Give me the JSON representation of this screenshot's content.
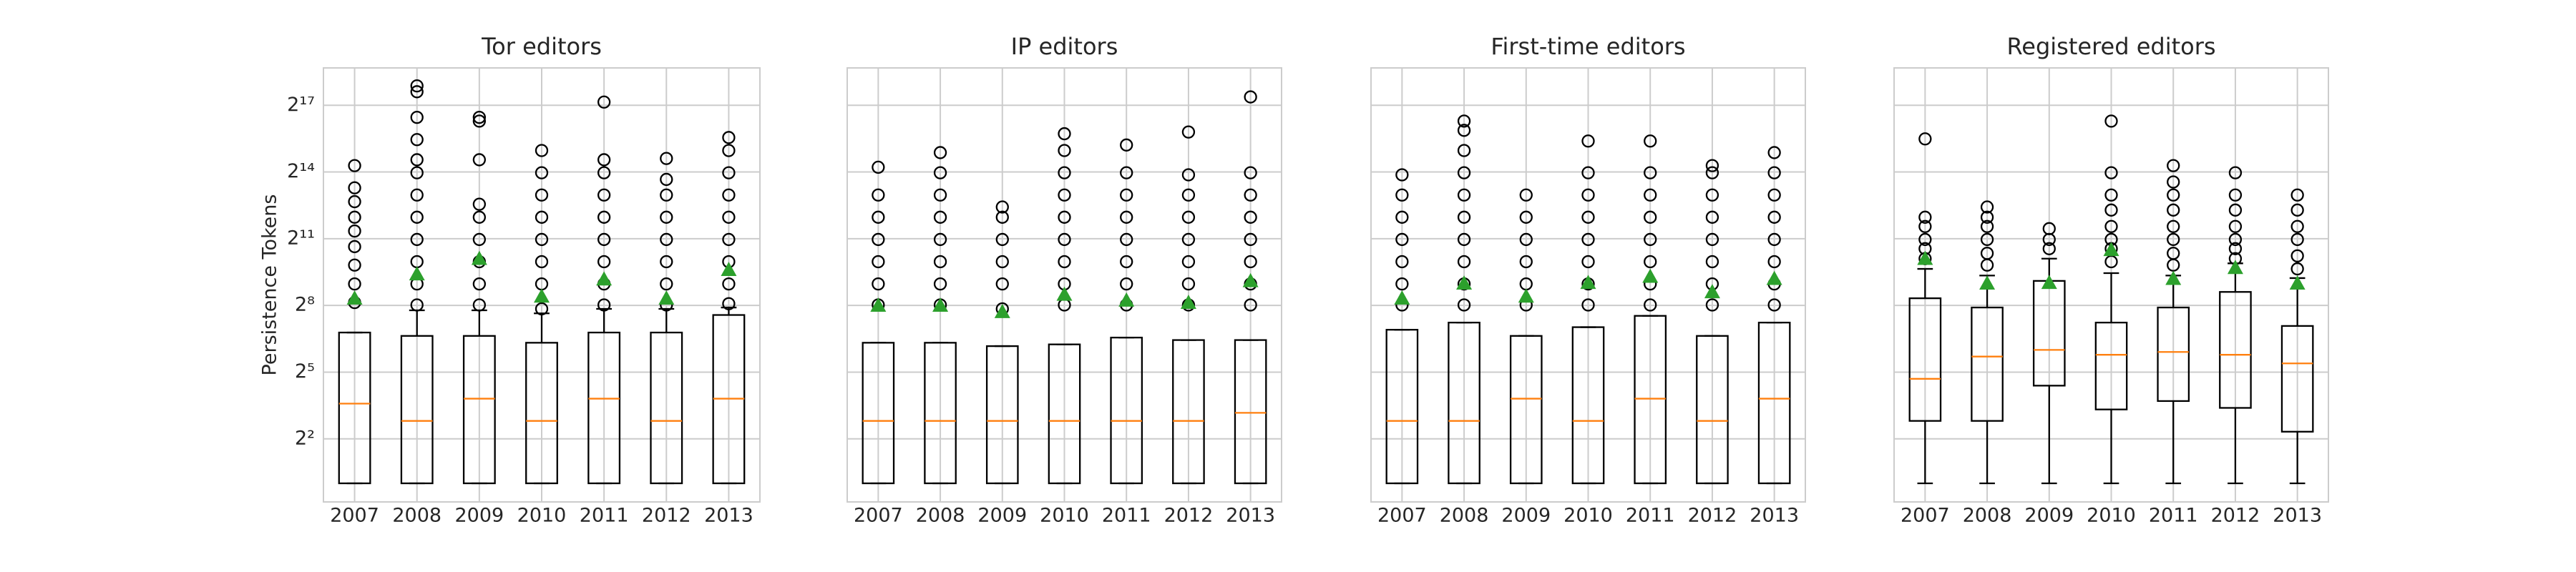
{
  "chart_data": [
    {
      "type": "box",
      "title": "Tor editors",
      "ylabel": "Persistence Tokens",
      "yscale": "log",
      "log_base": 2,
      "ylim": [
        0.56,
        420000
      ],
      "yticks": [
        {
          "value": 4,
          "label": "2²"
        },
        {
          "value": 32,
          "label": "2⁵"
        },
        {
          "value": 256,
          "label": "2⁸"
        },
        {
          "value": 2048,
          "label": "2¹¹"
        },
        {
          "value": 16384,
          "label": "2¹⁴"
        },
        {
          "value": 131072,
          "label": "2¹⁷"
        }
      ],
      "grid": true,
      "median_color": "#ff7f0e",
      "mean_color": "#2ca02c",
      "categories": [
        "2007",
        "2008",
        "2009",
        "2010",
        "2011",
        "2012",
        "2013"
      ],
      "boxes": [
        {
          "low": 1,
          "q1": 1,
          "median": 12,
          "q3": 110,
          "high": 110,
          "mean": 320,
          "outliers": [
            280,
            500,
            900,
            1600,
            2600,
            4000,
            6500,
            10000,
            20000
          ]
        },
        {
          "low": 1,
          "q1": 1,
          "median": 7,
          "q3": 99,
          "high": 220,
          "mean": 680,
          "outliers": [
            260,
            500,
            1000,
            2000,
            4000,
            8000,
            16000,
            24000,
            45000,
            90000,
            200000,
            240000
          ]
        },
        {
          "low": 1,
          "q1": 1,
          "median": 14,
          "q3": 99,
          "high": 220,
          "mean": 1100,
          "outliers": [
            260,
            500,
            1000,
            2000,
            4000,
            6000,
            24000,
            80000,
            90000
          ]
        },
        {
          "low": 1,
          "q1": 1,
          "median": 7,
          "q3": 80,
          "high": 200,
          "mean": 340,
          "outliers": [
            230,
            500,
            1000,
            2000,
            4000,
            8000,
            16000,
            32000
          ]
        },
        {
          "low": 1,
          "q1": 1,
          "median": 14,
          "q3": 110,
          "high": 230,
          "mean": 580,
          "outliers": [
            260,
            500,
            1000,
            2000,
            4000,
            8000,
            16000,
            24000,
            145000
          ]
        },
        {
          "low": 1,
          "q1": 1,
          "median": 7,
          "q3": 110,
          "high": 230,
          "mean": 320,
          "outliers": [
            260,
            500,
            1000,
            2000,
            4000,
            8000,
            13000,
            25000
          ]
        },
        {
          "low": 1,
          "q1": 1,
          "median": 14,
          "q3": 190,
          "high": 240,
          "mean": 780,
          "outliers": [
            270,
            500,
            1000,
            2000,
            4000,
            8000,
            16000,
            32000,
            48000
          ]
        }
      ]
    },
    {
      "type": "box",
      "title": "IP editors",
      "categories": [
        "2007",
        "2008",
        "2009",
        "2010",
        "2011",
        "2012",
        "2013"
      ],
      "boxes": [
        {
          "low": 1,
          "q1": 1,
          "median": 7,
          "q3": 80,
          "high": 80,
          "mean": 256,
          "outliers": [
            260,
            500,
            1000,
            2000,
            4000,
            8000,
            19000
          ]
        },
        {
          "low": 1,
          "q1": 1,
          "median": 7,
          "q3": 80,
          "high": 80,
          "mean": 256,
          "outliers": [
            260,
            500,
            1000,
            2000,
            4000,
            8000,
            16000,
            30000
          ]
        },
        {
          "low": 1,
          "q1": 1,
          "median": 7,
          "q3": 72,
          "high": 72,
          "mean": 210,
          "outliers": [
            230,
            500,
            1000,
            2000,
            4000,
            5500
          ]
        },
        {
          "low": 1,
          "q1": 1,
          "median": 7,
          "q3": 76,
          "high": 76,
          "mean": 360,
          "outliers": [
            260,
            500,
            1000,
            2000,
            4000,
            8000,
            16000,
            32000,
            54000
          ]
        },
        {
          "low": 1,
          "q1": 1,
          "median": 7,
          "q3": 94,
          "high": 94,
          "mean": 300,
          "outliers": [
            260,
            500,
            1000,
            2000,
            4000,
            8000,
            16000,
            38000
          ]
        },
        {
          "low": 1,
          "q1": 1,
          "median": 7,
          "q3": 87,
          "high": 87,
          "mean": 280,
          "outliers": [
            260,
            500,
            1000,
            2000,
            4000,
            8000,
            15000,
            57000
          ]
        },
        {
          "low": 1,
          "q1": 1,
          "median": 9,
          "q3": 87,
          "high": 87,
          "mean": 550,
          "outliers": [
            260,
            500,
            1000,
            2000,
            4000,
            8000,
            16000,
            170000
          ]
        }
      ]
    },
    {
      "type": "box",
      "title": "First-time editors",
      "categories": [
        "2007",
        "2008",
        "2009",
        "2010",
        "2011",
        "2012",
        "2013"
      ],
      "boxes": [
        {
          "low": 1,
          "q1": 1,
          "median": 7,
          "q3": 120,
          "high": 120,
          "mean": 320,
          "outliers": [
            260,
            500,
            1000,
            2000,
            4000,
            8000,
            15000
          ]
        },
        {
          "low": 1,
          "q1": 1,
          "median": 7,
          "q3": 150,
          "high": 150,
          "mean": 510,
          "outliers": [
            260,
            500,
            1000,
            2000,
            4000,
            8000,
            16000,
            32000,
            60000,
            80000
          ]
        },
        {
          "low": 1,
          "q1": 1,
          "median": 14,
          "q3": 99,
          "high": 99,
          "mean": 340,
          "outliers": [
            260,
            500,
            1000,
            2000,
            4000,
            8000
          ]
        },
        {
          "low": 1,
          "q1": 1,
          "median": 7,
          "q3": 130,
          "high": 130,
          "mean": 520,
          "outliers": [
            260,
            500,
            1000,
            2000,
            4000,
            8000,
            16000,
            43000
          ]
        },
        {
          "low": 1,
          "q1": 1,
          "median": 14,
          "q3": 185,
          "high": 185,
          "mean": 630,
          "outliers": [
            260,
            500,
            1000,
            2000,
            4000,
            8000,
            16000,
            43000
          ]
        },
        {
          "low": 1,
          "q1": 1,
          "median": 7,
          "q3": 99,
          "high": 99,
          "mean": 390,
          "outliers": [
            260,
            500,
            1000,
            2000,
            4000,
            8000,
            16000,
            20000
          ]
        },
        {
          "low": 1,
          "q1": 1,
          "median": 14,
          "q3": 150,
          "high": 150,
          "mean": 590,
          "outliers": [
            260,
            500,
            1000,
            2000,
            4000,
            8000,
            16000,
            30000
          ]
        }
      ]
    },
    {
      "type": "box",
      "title": "Registered editors",
      "categories": [
        "2007",
        "2008",
        "2009",
        "2010",
        "2011",
        "2012",
        "2013"
      ],
      "boxes": [
        {
          "low": 1,
          "q1": 7,
          "median": 26,
          "q3": 320,
          "high": 800,
          "mean": 1100,
          "outliers": [
            1100,
            1500,
            2000,
            3000,
            4000,
            46000
          ]
        },
        {
          "low": 1,
          "q1": 7,
          "median": 52,
          "q3": 240,
          "high": 650,
          "mean": 510,
          "outliers": [
            900,
            1300,
            2000,
            3000,
            4000,
            5500
          ]
        },
        {
          "low": 1,
          "q1": 21,
          "median": 64,
          "q3": 550,
          "high": 1100,
          "mean": 520,
          "outliers": [
            1500,
            2000,
            2800
          ]
        },
        {
          "low": 1,
          "q1": 10,
          "median": 55,
          "q3": 150,
          "high": 700,
          "mean": 1450,
          "outliers": [
            1000,
            1500,
            2000,
            3000,
            5000,
            8000,
            16000,
            80000
          ]
        },
        {
          "low": 1,
          "q1": 13,
          "median": 60,
          "q3": 240,
          "high": 650,
          "mean": 590,
          "outliers": [
            900,
            1300,
            2000,
            3000,
            5000,
            8000,
            12000,
            20000
          ]
        },
        {
          "low": 1,
          "q1": 10.5,
          "median": 55,
          "q3": 390,
          "high": 950,
          "mean": 830,
          "outliers": [
            1100,
            1500,
            2000,
            3000,
            5000,
            8000,
            16000
          ]
        },
        {
          "low": 1,
          "q1": 5,
          "median": 42,
          "q3": 135,
          "high": 600,
          "mean": 510,
          "outliers": [
            800,
            1200,
            2000,
            3000,
            5000,
            8000
          ]
        }
      ]
    }
  ]
}
